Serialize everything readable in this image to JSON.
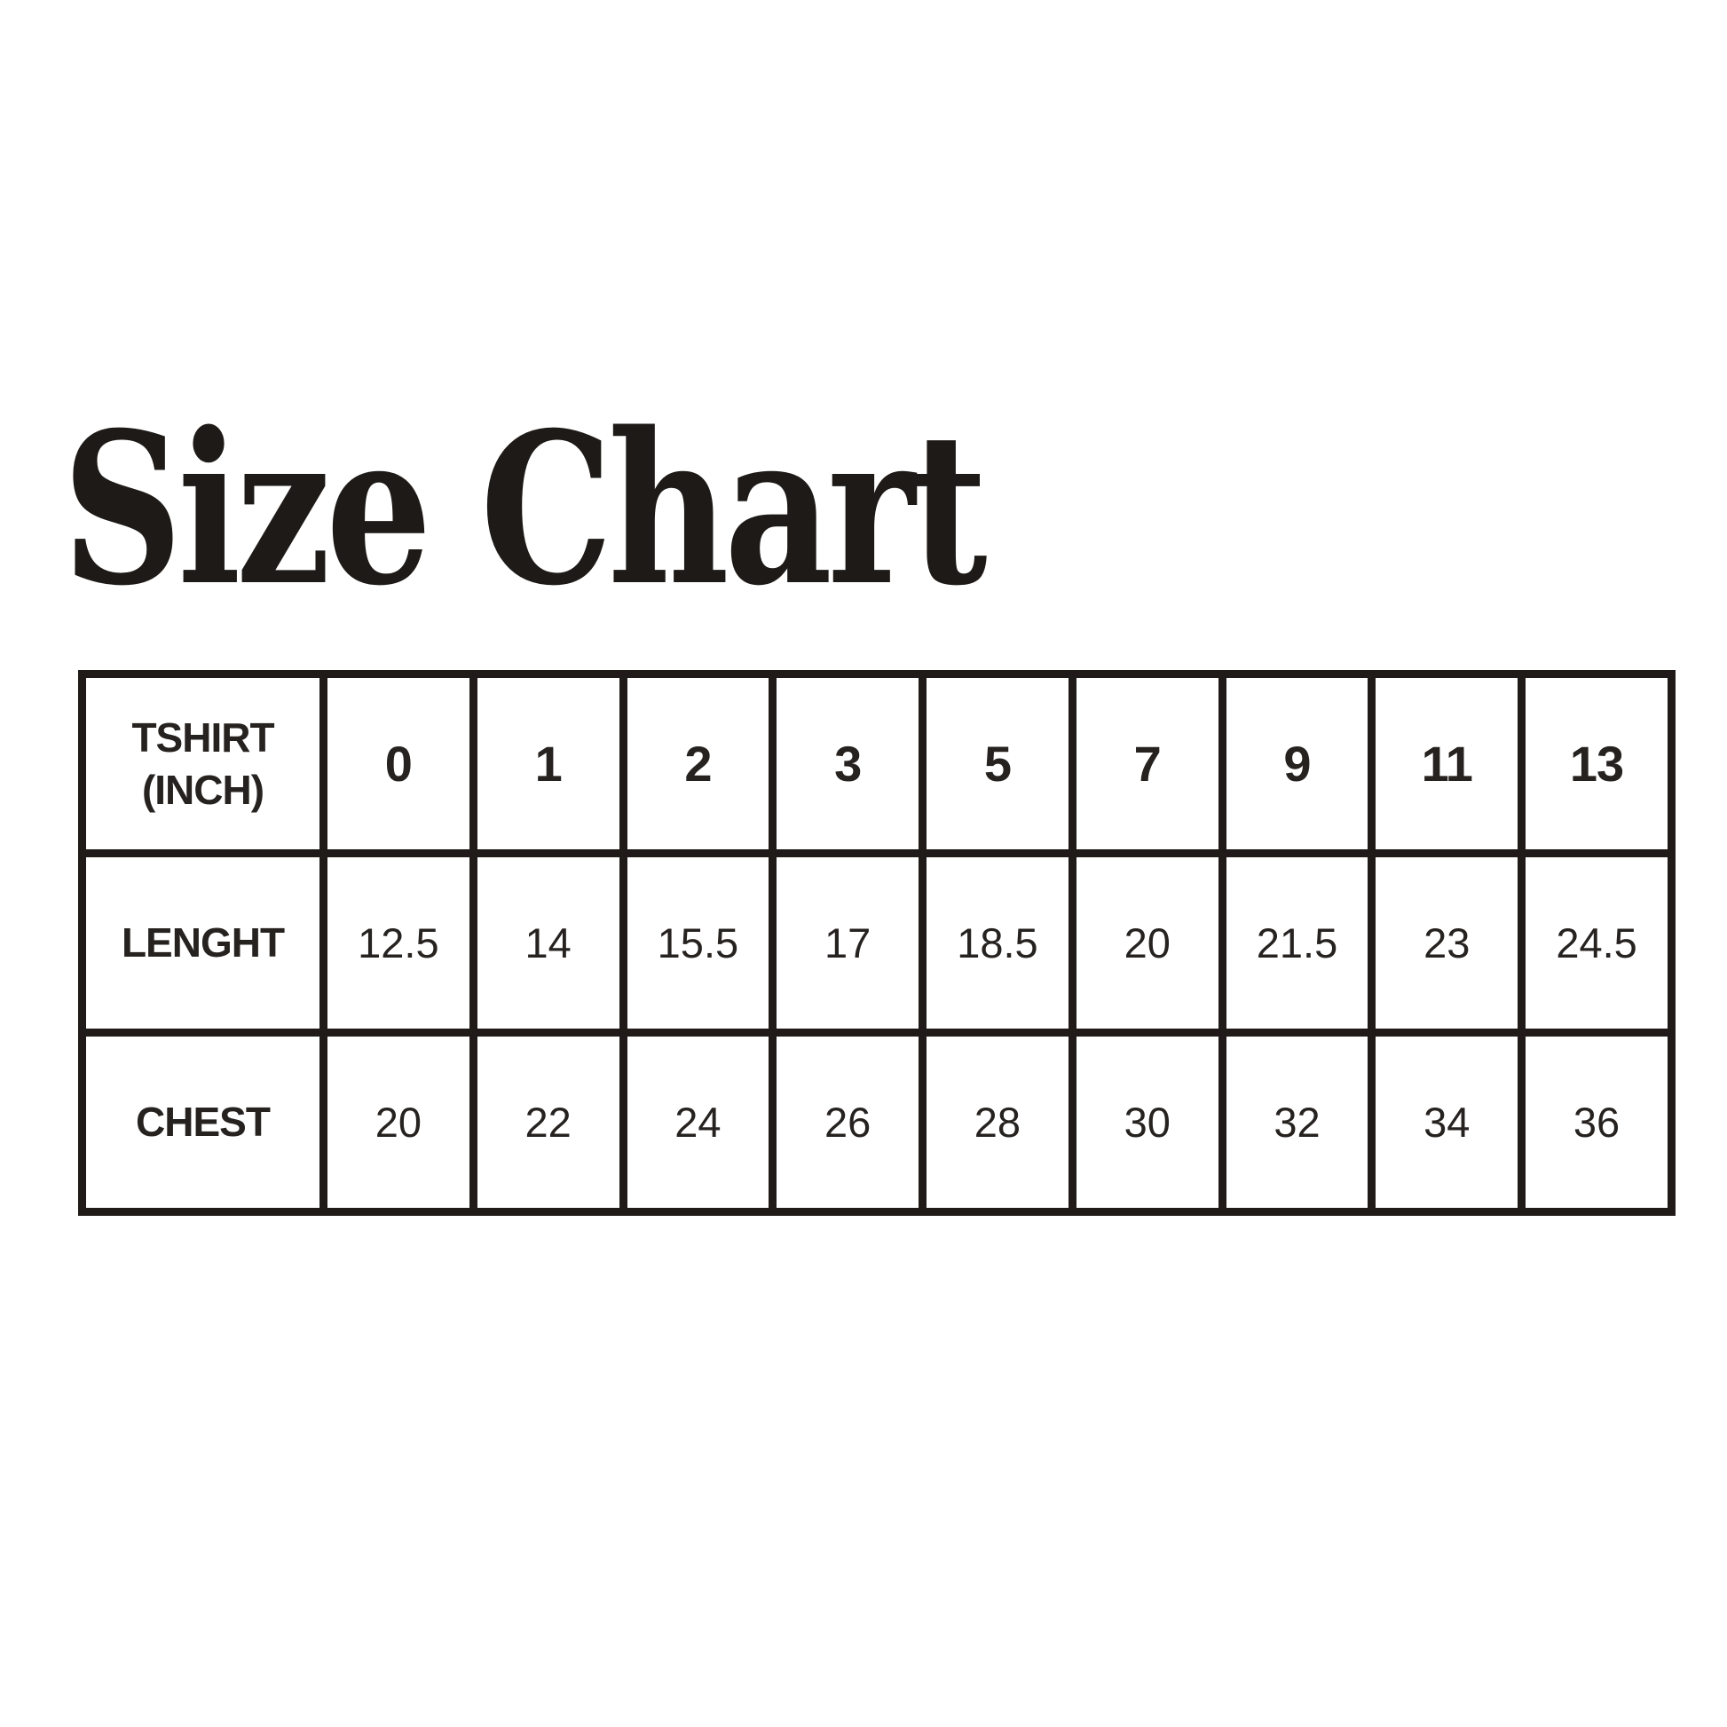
{
  "title": "Size Chart",
  "colors": {
    "background": "#ffffff",
    "text": "#262220",
    "border": "#201b18"
  },
  "table": {
    "rows": [
      {
        "label": "TSHIRT\n(INCH)",
        "values": [
          "0",
          "1",
          "2",
          "3",
          "5",
          "7",
          "9",
          "11",
          "13"
        ]
      },
      {
        "label": "LENGHT",
        "values": [
          "12.5",
          "14",
          "15.5",
          "17",
          "18.5",
          "20",
          "21.5",
          "23",
          "24.5"
        ]
      },
      {
        "label": "CHEST",
        "values": [
          "20",
          "22",
          "24",
          "26",
          "28",
          "30",
          "32",
          "34",
          "36"
        ]
      }
    ]
  },
  "chart_data": {
    "type": "table",
    "title": "Size Chart",
    "columns": [
      "TSHIRT (INCH)",
      "0",
      "1",
      "2",
      "3",
      "5",
      "7",
      "9",
      "11",
      "13"
    ],
    "rows": [
      [
        "LENGHT",
        12.5,
        14,
        15.5,
        17,
        18.5,
        20,
        21.5,
        23,
        24.5
      ],
      [
        "CHEST",
        20,
        22,
        24,
        26,
        28,
        30,
        32,
        34,
        36
      ]
    ],
    "units": "inches",
    "layout": "header row of sizes across top; measurement rows below; black grid on white"
  }
}
